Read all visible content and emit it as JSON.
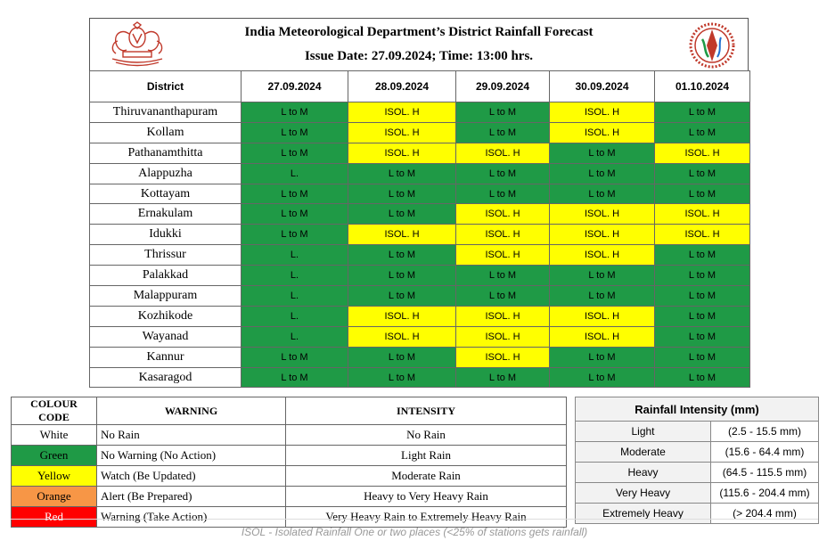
{
  "header": {
    "title": "India Meteorological  Department’s District  Rainfall Forecast",
    "issue": "Issue Date: 27.09.2024;  Time: 13:00 hrs."
  },
  "forecast": {
    "district_header": "District",
    "dates": [
      "27.09.2024",
      "28.09.2024",
      "29.09.2024",
      "30.09.2024",
      "01.10.2024"
    ],
    "rows": [
      {
        "district": "Thiruvananthapuram",
        "cells": [
          "L to M",
          "ISOL. H",
          "L to M",
          "ISOL. H",
          "L to M"
        ],
        "colors": [
          "G",
          "Y",
          "G",
          "Y",
          "G"
        ]
      },
      {
        "district": "Kollam",
        "cells": [
          "L to M",
          "ISOL. H",
          "L to M",
          "ISOL. H",
          "L to M"
        ],
        "colors": [
          "G",
          "Y",
          "G",
          "Y",
          "G"
        ]
      },
      {
        "district": "Pathanamthitta",
        "cells": [
          "L to M",
          "ISOL. H",
          "ISOL. H",
          "L to M",
          "ISOL. H"
        ],
        "colors": [
          "G",
          "Y",
          "Y",
          "G",
          "Y"
        ]
      },
      {
        "district": "Alappuzha",
        "cells": [
          "L.",
          "L to M",
          "L to M",
          "L to M",
          "L to M"
        ],
        "colors": [
          "G",
          "G",
          "G",
          "G",
          "G"
        ]
      },
      {
        "district": "Kottayam",
        "cells": [
          "L to M",
          "L to M",
          "L to M",
          "L to M",
          "L to M"
        ],
        "colors": [
          "G",
          "G",
          "G",
          "G",
          "G"
        ]
      },
      {
        "district": "Ernakulam",
        "cells": [
          "L to M",
          "L to M",
          "ISOL. H",
          "ISOL. H",
          "ISOL. H"
        ],
        "colors": [
          "G",
          "G",
          "Y",
          "Y",
          "Y"
        ]
      },
      {
        "district": "Idukki",
        "cells": [
          "L to M",
          "ISOL. H",
          "ISOL. H",
          "ISOL. H",
          "ISOL. H"
        ],
        "colors": [
          "G",
          "Y",
          "Y",
          "Y",
          "Y"
        ]
      },
      {
        "district": "Thrissur",
        "cells": [
          "L.",
          "L to M",
          "ISOL. H",
          "ISOL. H",
          "L to M"
        ],
        "colors": [
          "G",
          "G",
          "Y",
          "Y",
          "G"
        ]
      },
      {
        "district": "Palakkad",
        "cells": [
          "L.",
          "L to M",
          "L to M",
          "L to M",
          "L to M"
        ],
        "colors": [
          "G",
          "G",
          "G",
          "G",
          "G"
        ]
      },
      {
        "district": "Malappuram",
        "cells": [
          "L.",
          "L to M",
          "L to M",
          "L to M",
          "L to M"
        ],
        "colors": [
          "G",
          "G",
          "G",
          "G",
          "G"
        ]
      },
      {
        "district": "Kozhikode",
        "cells": [
          "L.",
          "ISOL. H",
          "ISOL. H",
          "ISOL. H",
          "L to M"
        ],
        "colors": [
          "G",
          "Y",
          "Y",
          "Y",
          "G"
        ]
      },
      {
        "district": "Wayanad",
        "cells": [
          "L.",
          "ISOL. H",
          "ISOL. H",
          "ISOL. H",
          "L to M"
        ],
        "colors": [
          "G",
          "Y",
          "Y",
          "Y",
          "G"
        ]
      },
      {
        "district": "Kannur",
        "cells": [
          "L to M",
          "L to M",
          "ISOL. H",
          "L to M",
          "L to M"
        ],
        "colors": [
          "G",
          "G",
          "Y",
          "G",
          "G"
        ]
      },
      {
        "district": "Kasaragod",
        "cells": [
          "L to M",
          "L to M",
          "L to M",
          "L to M",
          "L to M"
        ],
        "colors": [
          "G",
          "G",
          "G",
          "G",
          "G"
        ]
      }
    ]
  },
  "legend": {
    "headers": [
      "COLOUR CODE",
      "WARNING",
      "INTENSITY"
    ],
    "rows": [
      {
        "colour": "White",
        "warning": "No Rain",
        "intensity": "No Rain",
        "bg": "#ffffff",
        "fg": "#000000"
      },
      {
        "colour": "Green",
        "warning": "No Warning (No Action)",
        "intensity": "Light Rain",
        "bg": "#1f9a46",
        "fg": "#000000"
      },
      {
        "colour": "Yellow",
        "warning": "Watch (Be Updated)",
        "intensity": "Moderate Rain",
        "bg": "#ffff00",
        "fg": "#000000"
      },
      {
        "colour": "Orange",
        "warning": "Alert (Be Prepared)",
        "intensity": "Heavy to Very Heavy Rain",
        "bg": "#f79646",
        "fg": "#000000"
      },
      {
        "colour": "Red",
        "warning": "Warning (Take Action)",
        "intensity": "Very Heavy Rain to Extremely Heavy Rain",
        "bg": "#ff0000",
        "fg": "#ffffff"
      }
    ]
  },
  "intensity_table": {
    "title": "Rainfall Intensity (mm)",
    "rows": [
      {
        "label": "Light",
        "range": "(2.5 - 15.5 mm)"
      },
      {
        "label": "Moderate",
        "range": "(15.6 - 64.4 mm)"
      },
      {
        "label": "Heavy",
        "range": "(64.5 - 115.5 mm)"
      },
      {
        "label": "Very Heavy",
        "range": "(115.6 - 204.4 mm)"
      },
      {
        "label": "Extremely Heavy",
        "range": "(> 204.4 mm)"
      }
    ]
  },
  "note": "ISOL - Isolated Rainfall One or two places (<25% of stations gets rainfall)",
  "colors": {
    "green": "#1f9a46",
    "yellow": "#ffff00",
    "orange": "#f79646",
    "red": "#ff0000",
    "emblem": "#c0392b"
  }
}
